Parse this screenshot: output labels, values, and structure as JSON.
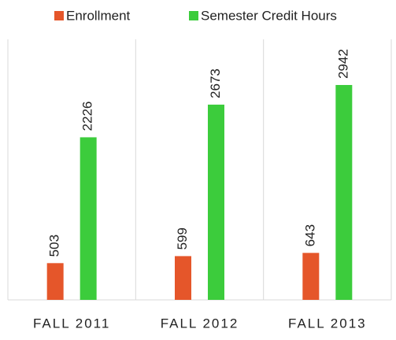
{
  "chart_data": {
    "type": "bar",
    "categories": [
      "FALL 2011",
      "FALL 2012",
      "FALL 2013"
    ],
    "series": [
      {
        "name": "Enrollment",
        "color": "#e5562a",
        "values": [
          503,
          599,
          643
        ]
      },
      {
        "name": "Semester Credit Hours",
        "color": "#3ccc3c",
        "values": [
          2226,
          2673,
          2942
        ]
      }
    ],
    "legend": "top"
  }
}
